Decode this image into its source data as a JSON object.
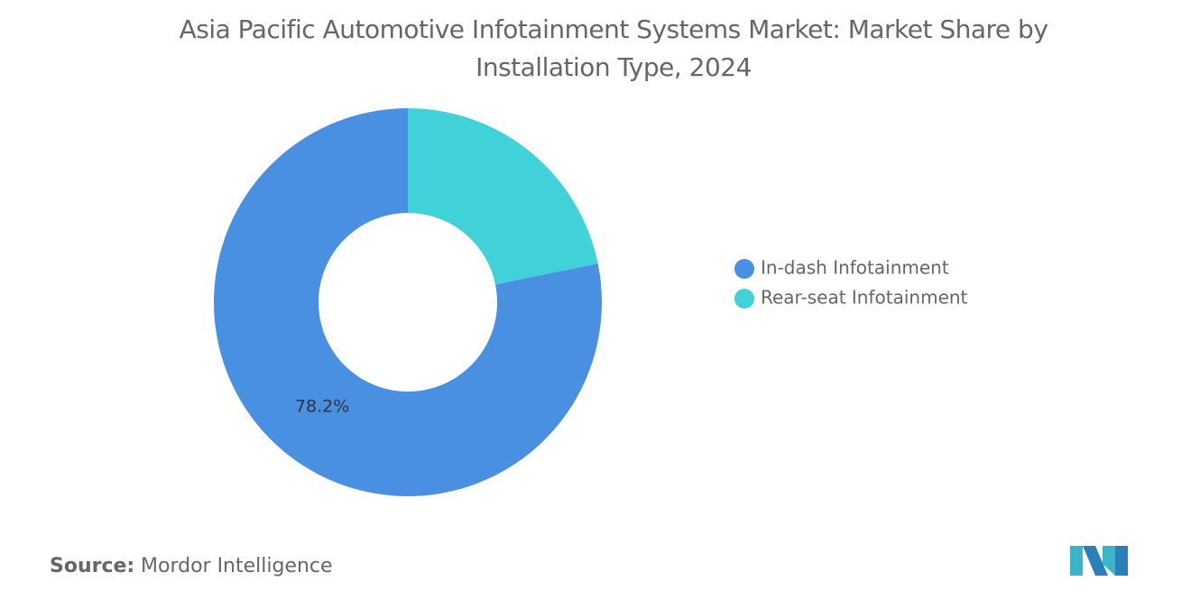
{
  "chart_data": {
    "type": "donut",
    "title": "Asia Pacific Automotive Infotainment Systems Market: Market Share by Installation Type, 2024",
    "categories": [
      "In-dash Infotainment",
      "Rear-seat Infotainment"
    ],
    "values": [
      78.2,
      21.8
    ],
    "value_labels": [
      "78.2%",
      null
    ],
    "colors": [
      "#4a90e2",
      "#40d1d9"
    ],
    "legend": "right",
    "source_label": "Source:",
    "source": "Mordor Intelligence"
  }
}
